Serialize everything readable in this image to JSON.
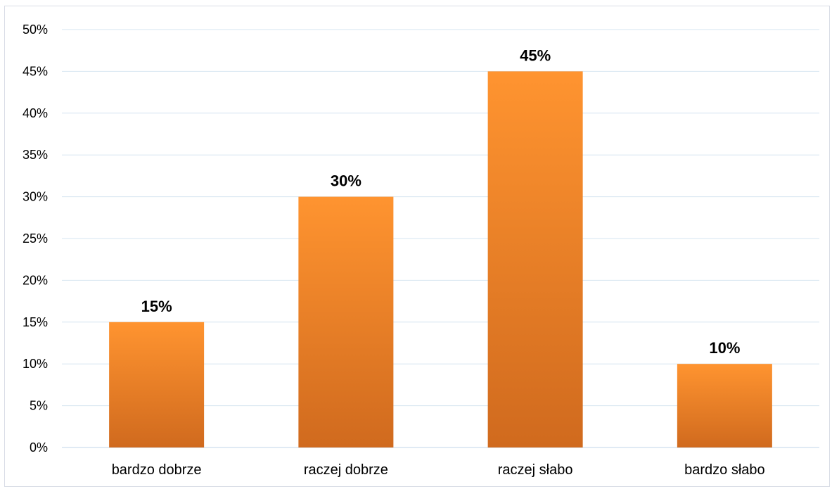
{
  "chart_data": {
    "type": "bar",
    "categories": [
      "bardzo dobrze",
      "raczej dobrze",
      "raczej słabo",
      "bardzo słabo"
    ],
    "values": [
      15,
      30,
      45,
      10
    ],
    "data_labels": [
      "15%",
      "30%",
      "45%",
      "10%"
    ],
    "title": "",
    "xlabel": "",
    "ylabel": "",
    "ylim": [
      0,
      50
    ],
    "yticks": [
      "0%",
      "5%",
      "10%",
      "15%",
      "20%",
      "25%",
      "30%",
      "35%",
      "40%",
      "45%",
      "50%"
    ],
    "grid": true,
    "legend": "none",
    "bar_color_top": "#ff9430",
    "bar_color_bottom": "#d06a1e",
    "grid_color": "#d6e4f0"
  }
}
